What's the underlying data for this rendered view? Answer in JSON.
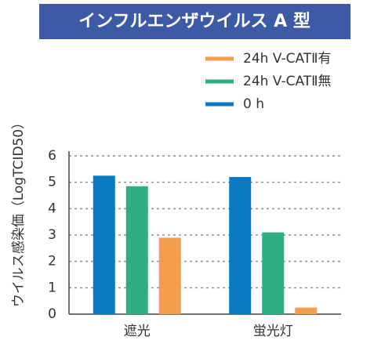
{
  "chart_data": {
    "type": "bar",
    "title": "インフルエンザウイルス A 型",
    "y_label": "ウイルス感染価（LogTCID50）",
    "categories": [
      "遮光",
      "蛍光灯"
    ],
    "series": [
      {
        "name": "24h V-CATⅡ有",
        "color": "#f49d4f",
        "values": [
          2.9,
          0.25
        ]
      },
      {
        "name": "24h V-CATⅡ無",
        "color": "#2fae84",
        "values": [
          4.85,
          3.1
        ]
      },
      {
        "name": "0 h",
        "color": "#0a7bc2",
        "values": [
          5.25,
          5.2
        ]
      }
    ],
    "ylim": [
      0,
      6
    ],
    "yticks": [
      0,
      1,
      2,
      3,
      4,
      5,
      6
    ],
    "grid": true
  }
}
